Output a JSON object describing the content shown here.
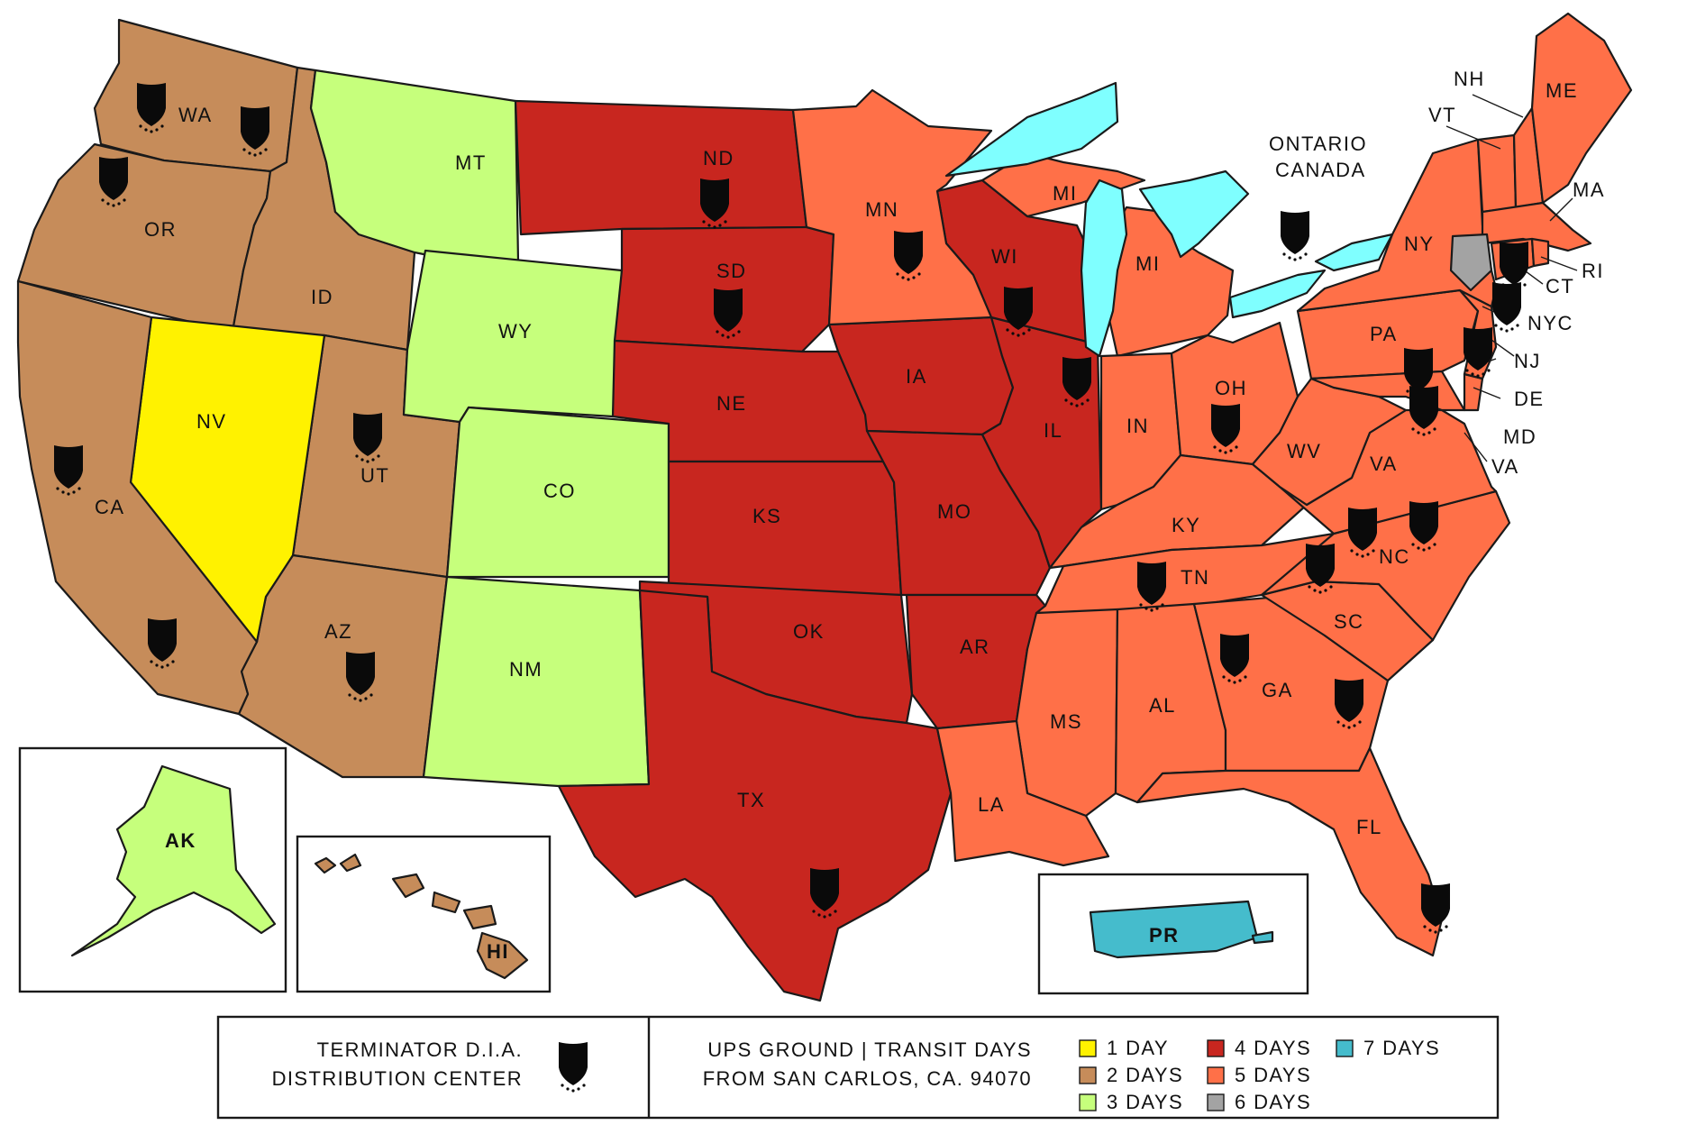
{
  "colors": {
    "day1": "#fff200",
    "day2": "#c68c5a",
    "day3": "#c6ff7c",
    "day4": "#c8261f",
    "day5": "#ff7048",
    "day6": "#a3a3a3",
    "day7": "#45bccc",
    "lakes": "#7fffff"
  },
  "states": {
    "WA": "WA",
    "OR": "OR",
    "CA": "CA",
    "NV": "NV",
    "ID": "ID",
    "MT": "MT",
    "WY": "WY",
    "UT": "UT",
    "AZ": "AZ",
    "CO": "CO",
    "NM": "NM",
    "ND": "ND",
    "SD": "SD",
    "NE": "NE",
    "KS": "KS",
    "OK": "OK",
    "TX": "TX",
    "MN": "MN",
    "IA": "IA",
    "MO": "MO",
    "AR": "AR",
    "LA": "LA",
    "WI": "WI",
    "IL": "IL",
    "MI_UP": "MI",
    "MI": "MI",
    "IN": "IN",
    "OH": "OH",
    "KY": "KY",
    "TN": "TN",
    "MS": "MS",
    "AL": "AL",
    "GA": "GA",
    "FL": "FL",
    "SC": "SC",
    "NC": "NC",
    "VA": "VA",
    "WV": "WV",
    "PA": "PA",
    "NY": "NY",
    "ME": "ME",
    "NH": "NH",
    "VT": "VT",
    "MA": "MA",
    "RI": "RI",
    "CT": "CT",
    "NJ": "NJ",
    "DE": "DE",
    "MD": "MD",
    "VA2": "VA",
    "NYC": "NYC",
    "AK": "AK",
    "HI": "HI",
    "PR": "PR"
  },
  "ontario": [
    "ONTARIO",
    "CANADA"
  ],
  "legend": {
    "dc_line1": "TERMINATOR D.I.A.",
    "dc_line2": "DISTRIBUTION CENTER",
    "ups_line1": "UPS GROUND | TRANSIT DAYS",
    "ups_line2": "FROM SAN CARLOS, CA. 94070",
    "items": [
      {
        "label": "1 DAY",
        "color": "#fff200"
      },
      {
        "label": "2 DAYS",
        "color": "#c68c5a"
      },
      {
        "label": "3 DAYS",
        "color": "#c6ff7c"
      },
      {
        "label": "4 DAYS",
        "color": "#c8261f"
      },
      {
        "label": "5 DAYS",
        "color": "#ff7048"
      },
      {
        "label": "6 DAYS",
        "color": "#a3a3a3"
      },
      {
        "label": "7 DAYS",
        "color": "#45bccc"
      }
    ]
  }
}
